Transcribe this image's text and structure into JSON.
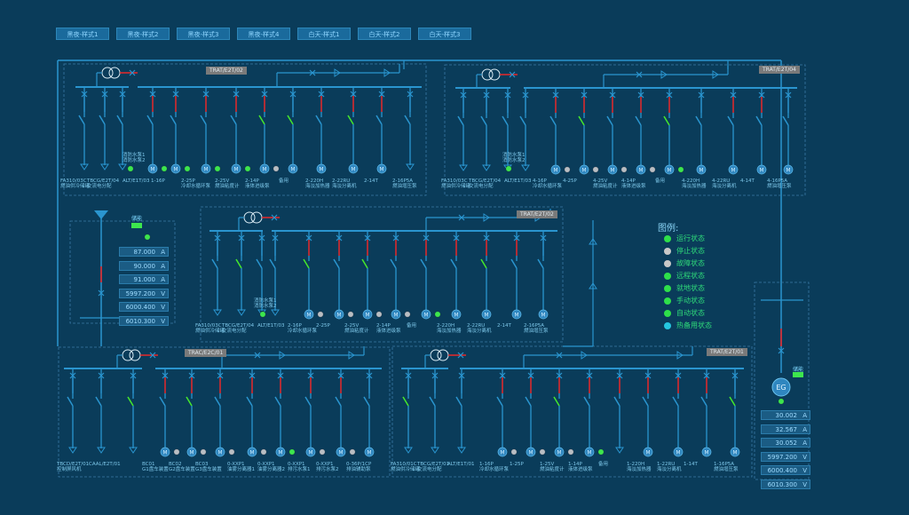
{
  "top_buttons": [
    "黑夜-样式1",
    "黑夜-样式2",
    "黑夜-样式3",
    "黑夜-样式4",
    "白天-样式1",
    "白天-样式2",
    "白天-样式3"
  ],
  "panels": {
    "tl": {
      "tag": "TRAT/E2T/02",
      "labels": [
        "FA310/03C\n燃油供冷储罐",
        "TBCG/E2T/04\n交流电分配",
        "ALT/E1T/03",
        "1-16P",
        "2-25P\n冷却水循环泵",
        "2-25V\n燃油粘度计",
        "2-14P\n液体进级泵",
        "备用",
        "2-220H\n海淡加热器",
        "2-22RU\n海淡分离机",
        "2-14T",
        "2-16P5A\n燃油增压泵"
      ],
      "aux": "消防水泵1\n消防水泵2"
    },
    "tr": {
      "tag": "TRAT/E2T/04",
      "labels": [
        "FA310/03C\n燃油供冷储罐",
        "TBCG/E2T/04\n交流电分配",
        "ALT/E1T/03",
        "4-16P\n冷却水循环泵",
        "4-25P",
        "4-25V\n燃油粘度计",
        "4-14P\n液体进级泵",
        "备用",
        "4-220H\n海淡加热器",
        "4-22RU\n海淡分离机",
        "4-14T",
        "4-16P5A\n燃油增压泵"
      ],
      "aux": "消防水泵1\n消防水泵2"
    },
    "mid": {
      "tag": "TRAT/E2T/02",
      "labels": [
        "FA310/03C\n燃油供冷储罐",
        "TBCG/E2T/04\n交流电分配",
        "ALT/E1T/03",
        "2-16P\n冷却水循环泵",
        "2-25P",
        "2-25V\n燃油粘度计",
        "2-14P\n液体进级泵",
        "备用",
        "2-220H\n海淡加热器",
        "2-22RU\n海淡分离机",
        "2-14T",
        "2-16P5A\n燃油增压泵"
      ],
      "aux": "消防水泵1\n消防水泵2"
    },
    "bl": {
      "tag": "TRAC/E2C/01",
      "labels": [
        "TBCD/E2T/01\n控制屏风机",
        "CAAL/E2T/01",
        "BC01\nG1盘车装置",
        "BC02\nG2盘车装置",
        "BC03\nG3盘车装置",
        "0-XXP1\n油雾分离器1",
        "0-XXP1\n油雾分离器2",
        "0-XXP1\n排污水泵1",
        "0-XXP1\n排污水泵2",
        "0-36P/1CP\n排油辅助泵"
      ]
    },
    "br": {
      "tag": "TRAT/E2T/01",
      "labels": [
        "FA310/01C\n燃油供冷储罐",
        "TBCG/E2T/01\n交流电分配",
        "ALT/E1T/01",
        "1-16P\n冷却水循环泵",
        "1-25P",
        "1-25V\n燃油粘度计",
        "1-14P\n液体进级泵",
        "备用",
        "1-220H\n海淡加热器",
        "1-22RU\n海淡分离机",
        "1-14T",
        "1-16P5A\n燃油增压泵"
      ]
    }
  },
  "left_unit": {
    "status_label": "储能",
    "readings": [
      {
        "value": "87.000",
        "unit": "A"
      },
      {
        "value": "90.000",
        "unit": "A"
      },
      {
        "value": "91.000",
        "unit": "A"
      },
      {
        "value": "5997.200",
        "unit": "V"
      },
      {
        "value": "6000.400",
        "unit": "V"
      },
      {
        "value": "6010.300",
        "unit": "V"
      }
    ]
  },
  "right_unit": {
    "status_label": "储能",
    "generator": "EG",
    "readings": [
      {
        "value": "30.002",
        "unit": "A"
      },
      {
        "value": "32.567",
        "unit": "A"
      },
      {
        "value": "30.052",
        "unit": "A"
      },
      {
        "value": "5997.200",
        "unit": "V"
      },
      {
        "value": "6000.400",
        "unit": "V"
      },
      {
        "value": "6010.300",
        "unit": "V"
      }
    ]
  },
  "legend": {
    "title": "图例:",
    "items": [
      {
        "label": "运行状态",
        "color": "#2ee04a"
      },
      {
        "label": "停止状态",
        "color": "#c8c8c8"
      },
      {
        "label": "故障状态",
        "color": "#c8c8c8"
      },
      {
        "label": "远程状态",
        "color": "#2ee04a"
      },
      {
        "label": "就地状态",
        "color": "#2ee04a"
      },
      {
        "label": "手动状态",
        "color": "#2ee04a"
      },
      {
        "label": "自动状态",
        "color": "#2ee04a"
      },
      {
        "label": "热备用状态",
        "color": "#25c6e0"
      }
    ]
  },
  "colors": {
    "bg": "#0a3c5a",
    "line": "#2a95cf",
    "red": "#e8282a",
    "green": "#45e82c",
    "run": "#3de64e",
    "stop": "#b9bec3",
    "motor": "#2f86bf"
  }
}
